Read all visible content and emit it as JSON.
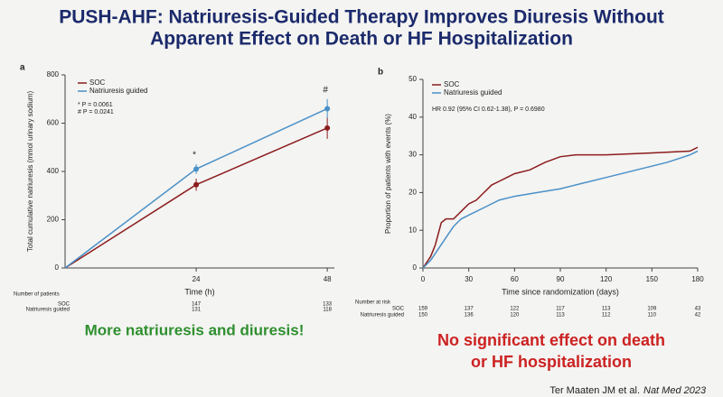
{
  "slide": {
    "title": [
      "PUSH-AHF: Natriuresis-Guided Therapy Improves Diuresis Without",
      "Apparent Effect on Death or HF Hospitalization"
    ],
    "captions": {
      "left": "More natriuresis and diuresis!",
      "right": [
        "No significant effect on death",
        "or HF hospitalization"
      ]
    },
    "citation": {
      "authors": "Ter Maaten JM et al.",
      "journal": "Nat Med 2023"
    }
  },
  "chart_data": [
    {
      "type": "line",
      "panel": "a",
      "xlabel": "Time (h)",
      "ylabel": "Total cumulative natriuresis (mmol urinary sodium)",
      "xlim": [
        0,
        49.3
      ],
      "xticks": [
        24,
        48
      ],
      "ylim": [
        0,
        800
      ],
      "yticks": [
        0,
        200,
        400,
        600,
        800
      ],
      "series": [
        {
          "name": "SOC",
          "color": "#8b1c1c",
          "x": [
            0,
            24,
            48
          ],
          "values": [
            0,
            345,
            580
          ],
          "errors": [
            null,
            25,
            45
          ]
        },
        {
          "name": "Natriuresis guided",
          "color": "#4a90c8",
          "x": [
            0,
            24,
            48
          ],
          "values": [
            0,
            410,
            660
          ],
          "errors": [
            null,
            20,
            40
          ]
        }
      ],
      "sig_marks": [
        "*",
        "#"
      ],
      "pvalues": [
        "* P = 0.0061",
        "# P = 0.0241"
      ],
      "risk_table": {
        "title": "Number of patients",
        "rows": [
          {
            "name": "SOC",
            "values": [
              147,
              133
            ]
          },
          {
            "name": "Natriuresis guided",
            "values": [
              131,
              118
            ]
          }
        ]
      }
    },
    {
      "type": "line",
      "panel": "b",
      "xlabel": "Time since randomization (days)",
      "ylabel": "Proportion of patients with events (%)",
      "xlim": [
        0,
        180
      ],
      "xticks": [
        0,
        30,
        60,
        90,
        120,
        150,
        180
      ],
      "ylim": [
        0,
        50
      ],
      "yticks": [
        0,
        10,
        20,
        30,
        40,
        50
      ],
      "series": [
        {
          "name": "SOC",
          "color": "#8b1c1c",
          "x": [
            0,
            5,
            8,
            10,
            12,
            15,
            20,
            25,
            30,
            35,
            40,
            45,
            50,
            55,
            60,
            70,
            80,
            90,
            100,
            120,
            150,
            175,
            180
          ],
          "values": [
            0,
            3,
            6,
            9,
            12,
            13,
            13,
            15,
            17,
            18,
            20,
            22,
            23,
            24,
            25,
            26,
            28,
            29.5,
            30,
            30,
            30.5,
            31,
            32
          ]
        },
        {
          "name": "Natriuresis guided",
          "color": "#4a90c8",
          "x": [
            0,
            5,
            10,
            15,
            20,
            25,
            30,
            40,
            50,
            60,
            75,
            90,
            100,
            120,
            140,
            160,
            175,
            180
          ],
          "values": [
            0,
            2,
            5,
            8,
            11,
            13,
            14,
            16,
            18,
            19,
            20,
            21,
            22,
            24,
            26,
            28,
            30,
            31
          ]
        }
      ],
      "annotation": "HR 0.92 (95% CI 0.62-1.38), P = 0.6980",
      "risk_table": {
        "title": "Number at risk",
        "rows": [
          {
            "name": "SOC",
            "values": [
              159,
              137,
              122,
              117,
              113,
              109,
              43
            ]
          },
          {
            "name": "Natriuresis guided",
            "values": [
              150,
              136,
              120,
              113,
              112,
              110,
              42
            ]
          }
        ]
      }
    }
  ]
}
